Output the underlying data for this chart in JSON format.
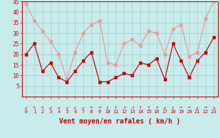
{
  "x": [
    0,
    1,
    2,
    3,
    4,
    5,
    6,
    7,
    8,
    9,
    10,
    11,
    12,
    13,
    14,
    15,
    16,
    17,
    18,
    19,
    20,
    21,
    22,
    23
  ],
  "wind_avg": [
    20,
    25,
    12,
    16,
    9,
    7,
    12,
    17,
    21,
    7,
    7,
    9,
    11,
    10,
    16,
    15,
    18,
    8,
    25,
    17,
    9,
    17,
    21,
    28
  ],
  "wind_gust": [
    44,
    36,
    31,
    26,
    20,
    8,
    21,
    30,
    34,
    36,
    16,
    15,
    25,
    27,
    24,
    31,
    30,
    20,
    32,
    34,
    19,
    21,
    37,
    45
  ],
  "avg_color": "#cc0000",
  "gust_color": "#ee9999",
  "bg_color": "#c8ecec",
  "grid_color": "#aacccc",
  "xlabel": "Vent moyen/en rafales ( km/h )",
  "xlabel_color": "#cc0000",
  "ylim_max": 45,
  "yticks": [
    5,
    10,
    15,
    20,
    25,
    30,
    35,
    40,
    45
  ],
  "axis_color": "#cc0000",
  "arrows": [
    "↙",
    "↖",
    "↖",
    "↙",
    "↙",
    "↙",
    "↙",
    "↙",
    "←",
    "→",
    "↓",
    "↑",
    "↗",
    "↗",
    "↑",
    "↑",
    "↗",
    "↙",
    "↓",
    "→",
    "→",
    "↙",
    "→",
    "↘"
  ]
}
